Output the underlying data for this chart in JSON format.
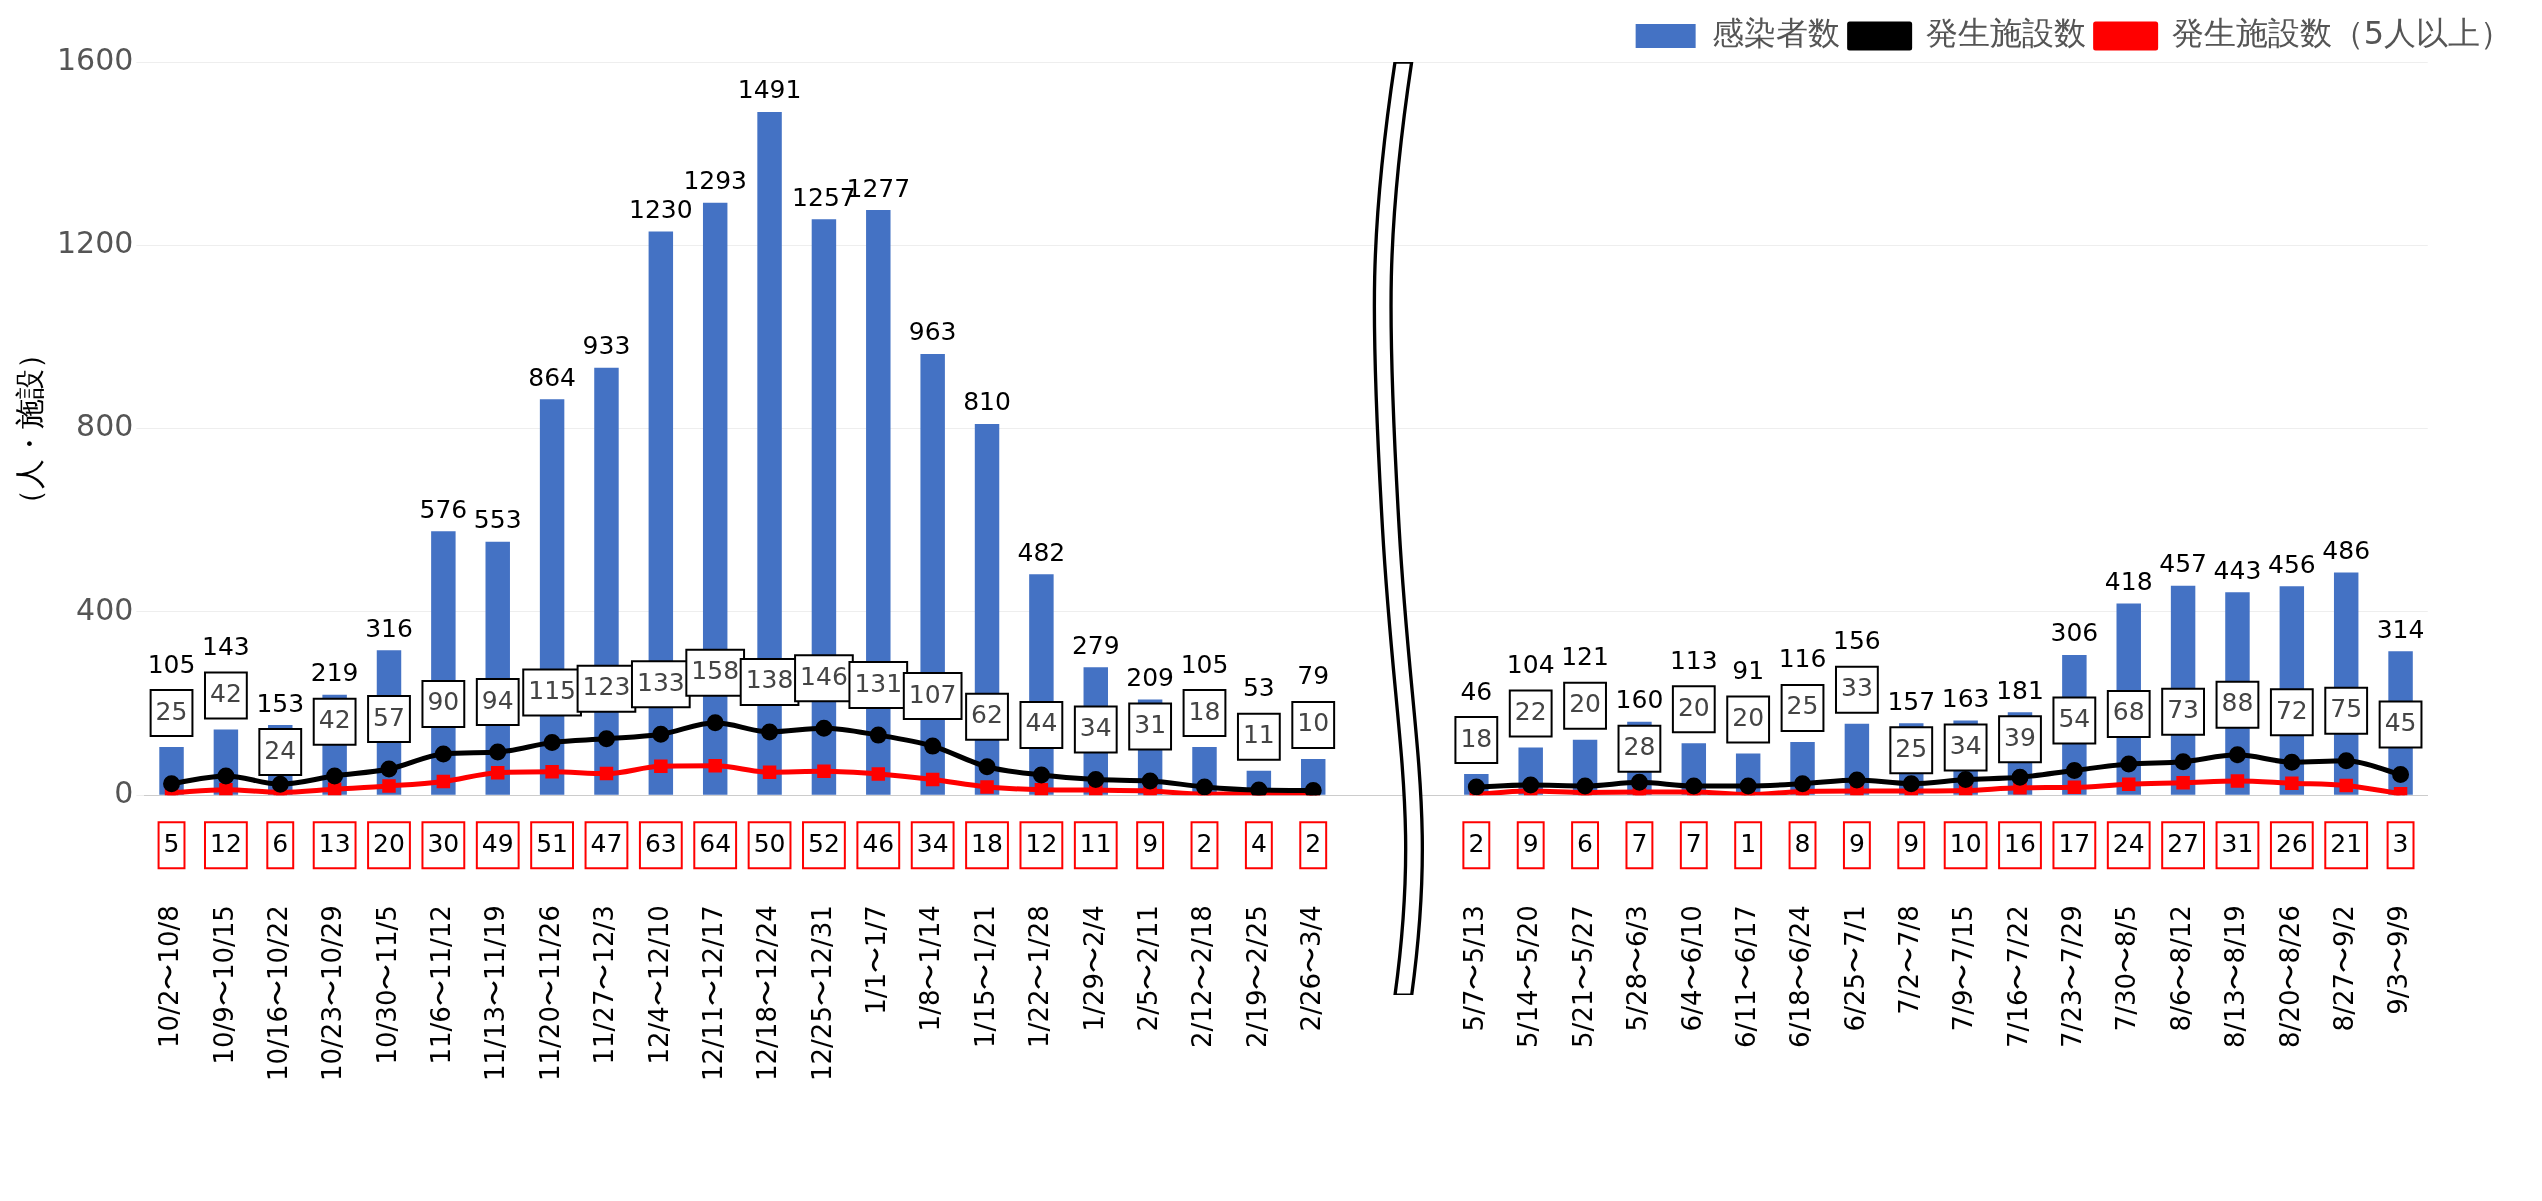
{
  "chart_data": {
    "type": "bar",
    "ylabel": "（人・施設）",
    "categories": [
      "10/2〜10/8",
      "10/9〜10/15",
      "10/16〜10/22",
      "10/23〜10/29",
      "10/30〜11/5",
      "11/6〜11/12",
      "11/13〜11/19",
      "11/20〜11/26",
      "11/27〜12/3",
      "12/4〜12/10",
      "12/11〜12/17",
      "12/18〜12/24",
      "12/25〜12/31",
      "1/1〜1/7",
      "1/8〜1/14",
      "1/15〜1/21",
      "1/22〜1/28",
      "1/29〜2/4",
      "2/5〜2/11",
      "2/12〜2/18",
      "2/19〜2/25",
      "2/26〜3/4",
      null,
      null,
      "5/7〜5/13",
      "5/14〜5/20",
      "5/21〜5/27",
      "5/28〜6/3",
      "6/4〜6/10",
      "6/11〜6/17",
      "6/18〜6/24",
      "6/25〜7/1",
      "7/2〜7/8",
      "7/9〜7/15",
      "7/16〜7/22",
      "7/23〜7/29",
      "7/30〜8/5",
      "8/6〜8/12",
      "8/13〜8/19",
      "8/20〜8/26",
      "8/27〜9/2",
      "9/3〜9/9"
    ],
    "series": [
      {
        "name": "感染者数",
        "color": "#4472c4",
        "values": [
          105,
          143,
          153,
          219,
          316,
          576,
          553,
          864,
          933,
          1230,
          1293,
          1491,
          1257,
          1277,
          963,
          810,
          482,
          279,
          209,
          105,
          53,
          79,
          null,
          null,
          46,
          104,
          121,
          160,
          113,
          91,
          116,
          156,
          157,
          163,
          181,
          306,
          418,
          457,
          443,
          456,
          486,
          314
        ]
      },
      {
        "name": "発生施設数",
        "type": "line",
        "color": "#000000",
        "marker": "circle",
        "values": [
          25,
          42,
          24,
          42,
          57,
          90,
          94,
          115,
          123,
          133,
          158,
          138,
          146,
          131,
          107,
          62,
          44,
          34,
          31,
          18,
          11,
          10,
          null,
          null,
          18,
          22,
          20,
          28,
          20,
          20,
          25,
          33,
          25,
          34,
          39,
          54,
          68,
          73,
          88,
          72,
          75,
          45
        ]
      },
      {
        "name": "発生施設数（5人以上）",
        "type": "line",
        "color": "#ff0000",
        "marker": "square",
        "values": [
          5,
          12,
          6,
          13,
          20,
          30,
          49,
          51,
          47,
          63,
          64,
          50,
          52,
          46,
          34,
          18,
          12,
          11,
          9,
          2,
          4,
          2,
          null,
          null,
          2,
          9,
          6,
          7,
          7,
          1,
          8,
          9,
          9,
          10,
          16,
          17,
          24,
          27,
          31,
          26,
          21,
          3
        ]
      }
    ],
    "ylim": [
      0,
      1600
    ],
    "yticks": [
      0,
      400,
      800,
      1200,
      1600
    ],
    "grid": "y",
    "legend": "top right",
    "data_labels": true
  }
}
